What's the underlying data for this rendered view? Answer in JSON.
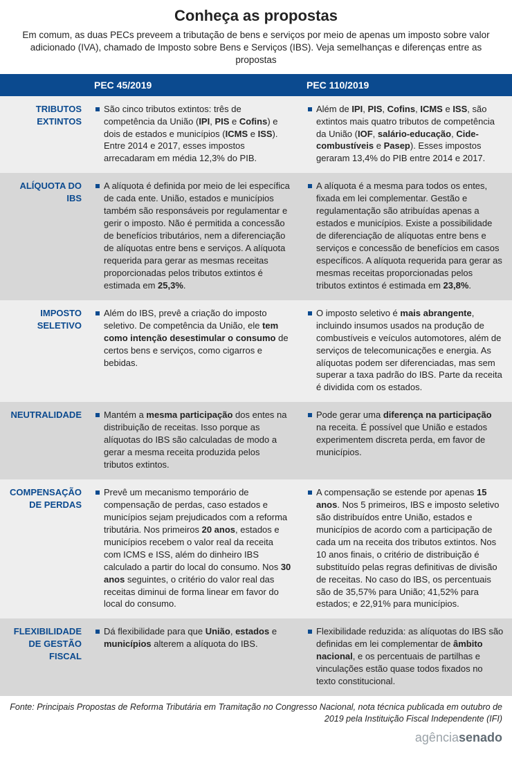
{
  "title": "Conheça as propostas",
  "subtitle": "Em comum, as duas PECs preveem a tributação de bens e serviços por meio de apenas um imposto sobre valor adicionado (IVA), chamado de Imposto sobre Bens e Serviços (IBS). Veja semelhanças e diferenças entre as propostas",
  "headers": {
    "col1": "PEC 45/2019",
    "col2": "PEC 110/2019"
  },
  "rows": [
    {
      "label": "TRIBUTOS EXTINTOS",
      "left": "São cinco tributos extintos: três de competência da União (<b>IPI</b>, <b>PIS</b> e <b>Cofins</b>) e dois de estados e municípios (<b>ICMS</b> e <b>ISS</b>). Entre 2014 e 2017, esses impostos arrecadaram em média 12,3% do PIB.",
      "right": "Além de <b>IPI</b>, <b>PIS</b>, <b>Cofins</b>, <b>ICMS</b> e <b>ISS</b>, são extintos mais quatro tributos de competência da União (<b>IOF</b>, <b>salário-educação</b>, <b>Cide-combustíveis</b> e <b>Pasep</b>). Esses impostos geraram 13,4% do PIB entre 2014 e 2017."
    },
    {
      "label": "ALÍQUOTA DO IBS",
      "left": "A alíquota é definida por meio de lei específica de cada ente. União, estados e municípios também são responsáveis por regulamentar e gerir o imposto. Não é permitida a concessão de benefícios tributários, nem a diferenciação de alíquotas entre bens e serviços. A alíquota requerida para gerar as mesmas receitas proporcionadas pelos tributos extintos é estimada em <b>25,3%</b>.",
      "right": "A alíquota é a mesma para todos os entes, fixada em lei complementar. Gestão e regulamentação são atribuídas apenas a estados e municípios. Existe a possibilidade de diferenciação de alíquotas entre bens e serviços e concessão de benefícios em casos específicos. A alíquota requerida para gerar as mesmas receitas proporcionadas pelos tributos extintos é estimada em <b>23,8%</b>."
    },
    {
      "label": "IMPOSTO SELETIVO",
      "left": "Além do IBS, prevê a criação do imposto seletivo. De competência da União, ele <b>tem como intenção desestimular o consumo</b> de certos bens e serviços, como cigarros e bebidas.",
      "right": "O imposto seletivo é <b>mais abrangente</b>, incluindo insumos usados na produção de combustíveis e veículos automotores, além de serviços de telecomunicações e energia. As alíquotas podem ser diferenciadas, mas sem superar a taxa padrão do IBS. Parte da receita é dividida com os estados."
    },
    {
      "label": "NEUTRALIDADE",
      "left": "Mantém a <b>mesma participação</b> dos entes na distribuição de receitas. Isso porque as alíquotas do IBS são calculadas de modo a gerar a mesma receita produzida pelos tributos extintos.",
      "right": "Pode gerar uma <b>diferença na participação</b> na receita. É possível que União e estados experimentem discreta perda, em favor de municípios."
    },
    {
      "label": "COMPENSAÇÃO DE PERDAS",
      "left": "Prevê um mecanismo temporário de compensação de perdas, caso estados e municípios sejam prejudicados com a reforma tributária. Nos primeiros <b>20 anos</b>, estados e municípios recebem o valor real da receita com ICMS e ISS, além do dinheiro IBS calculado a partir do local do consumo. Nos <b>30 anos</b> seguintes, o critério do valor real das receitas diminui de forma linear em favor do local do consumo.",
      "right": "A compensação se estende por apenas <b>15 anos</b>. Nos 5 primeiros, IBS e imposto seletivo são distribuídos entre União, estados e municípios de acordo com a participação de cada um na receita dos tributos extintos. Nos 10 anos finais, o critério de distribuição é substituído pelas regras definitivas de divisão de receitas. No caso do IBS, os percentuais são de 35,57% para União; 41,52% para estados; e 22,91% para municípios."
    },
    {
      "label": "FLEXIBILIDADE DE GESTÃO FISCAL",
      "left": "Dá flexibilidade para que <b>União</b>, <b>estados</b> e <b>municípios</b> alterem a alíquota do IBS.",
      "right": "Flexibilidade reduzida: as alíquotas do IBS são definidas em lei complementar de <b>âmbito nacional</b>, e os percentuais de partilhas e vinculações estão quase todos fixados no texto constitucional."
    }
  ],
  "source": "Fonte: Principais Propostas de Reforma Tributária em Tramitação no Congresso Nacional, nota técnica publicada em outubro de 2019 pela Instituição Fiscal Independente (IFI)",
  "logo_html": "agência<b>senado</b>",
  "colors": {
    "header_bg": "#0b4a8f",
    "alt_bg": "#d7d7d7",
    "nor_bg": "#eeeeee",
    "label_color": "#0b4a8f"
  }
}
